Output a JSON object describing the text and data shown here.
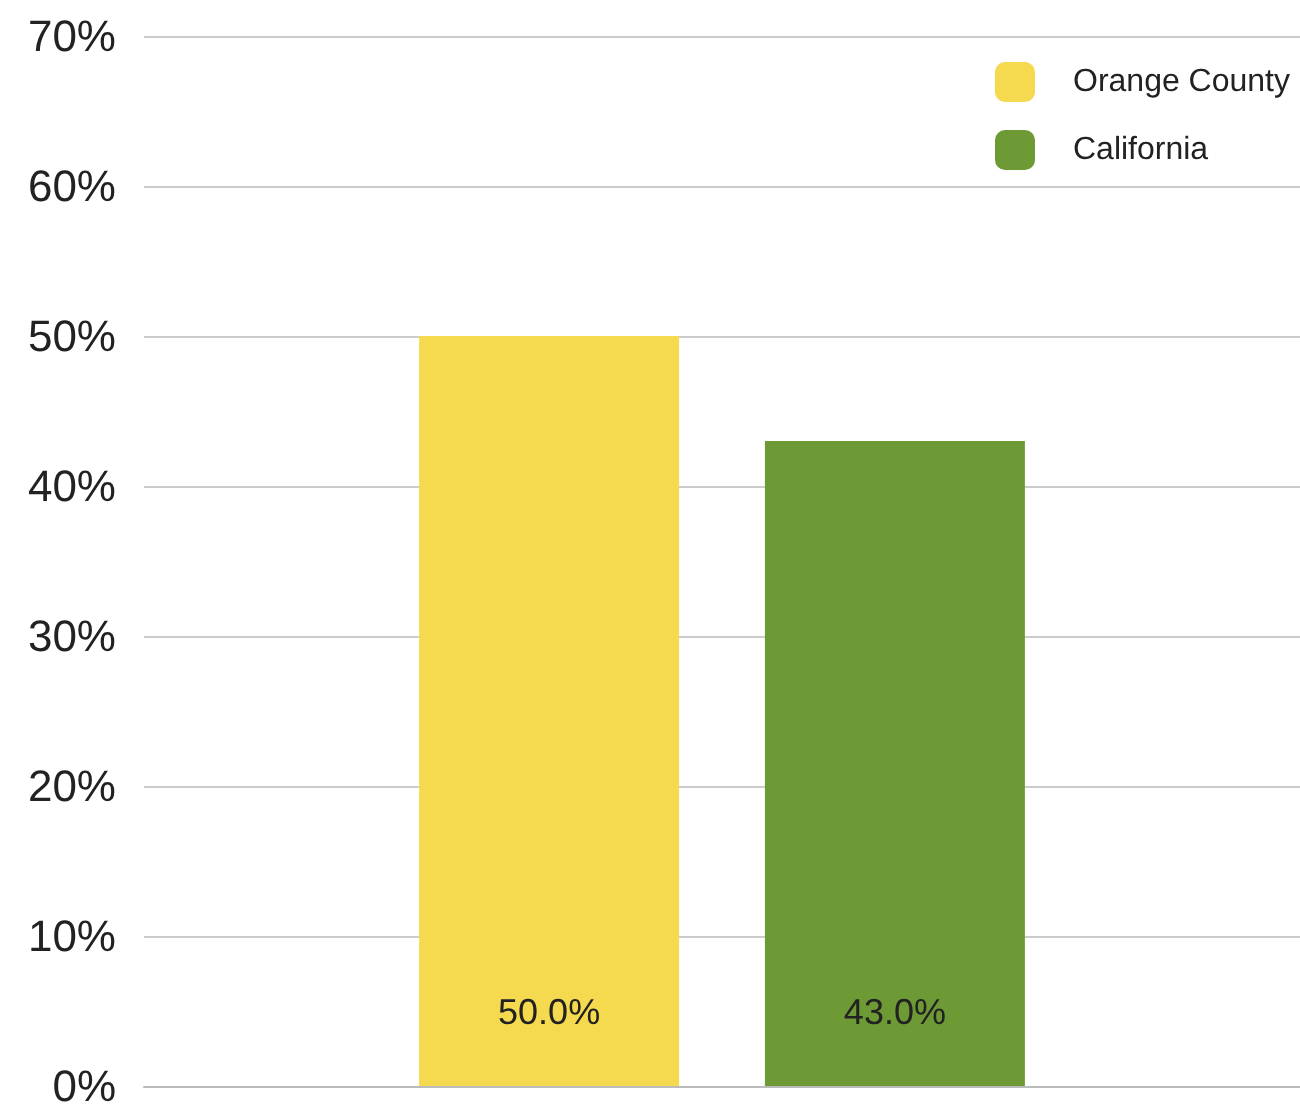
{
  "chart_data": {
    "type": "bar",
    "categories": [
      null
    ],
    "series": [
      {
        "name": "Orange County",
        "color": "#f5d94e",
        "values": [
          50.0
        ],
        "value_labels": [
          "50.0%"
        ]
      },
      {
        "name": "California",
        "color": "#6e9a35",
        "values": [
          43.0
        ],
        "value_labels": [
          "43.0%"
        ]
      }
    ],
    "ylim": [
      0,
      70
    ],
    "yticks": [
      {
        "value": 0,
        "label": "0%"
      },
      {
        "value": 10,
        "label": "10%"
      },
      {
        "value": 20,
        "label": "20%"
      },
      {
        "value": 30,
        "label": "30%"
      },
      {
        "value": 40,
        "label": "40%"
      },
      {
        "value": 50,
        "label": "50%"
      },
      {
        "value": 60,
        "label": "60%"
      },
      {
        "value": 70,
        "label": "70%"
      }
    ],
    "grid": "y",
    "legend": "top right"
  }
}
